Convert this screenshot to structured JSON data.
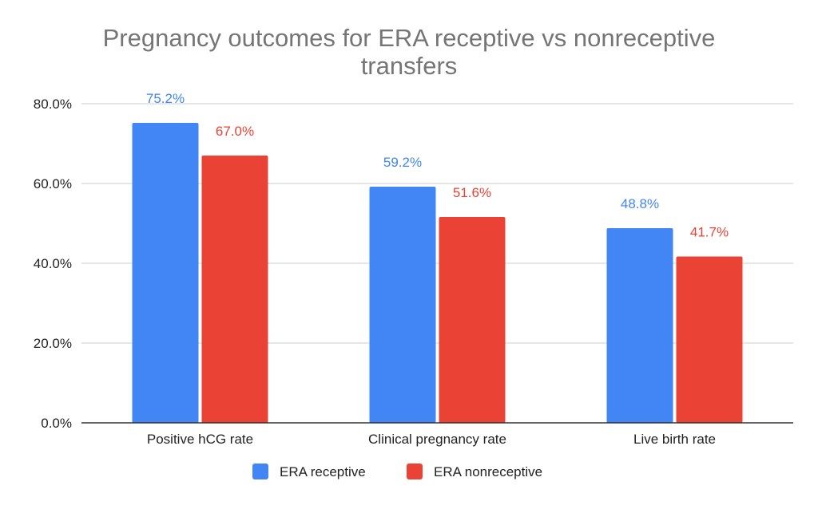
{
  "chart_data": {
    "type": "bar",
    "title_lines": [
      "Pregnancy outcomes for ERA receptive vs nonreceptive",
      "transfers"
    ],
    "categories": [
      "Positive hCG rate",
      "Clinical pregnancy rate",
      "Live birth rate"
    ],
    "series": [
      {
        "name": "ERA receptive",
        "color": "#4285f4",
        "values": [
          75.2,
          59.2,
          48.8
        ],
        "labels": [
          "75.2%",
          "59.2%",
          "48.8%"
        ]
      },
      {
        "name": "ERA nonreceptive",
        "color": "#ea4335",
        "values": [
          67.0,
          51.6,
          41.7
        ],
        "labels": [
          "67.0%",
          "51.6%",
          "41.7%"
        ]
      }
    ],
    "ylim": [
      0,
      80
    ],
    "yticks": [
      0,
      20,
      40,
      60,
      80
    ],
    "ytick_labels": [
      "0.0%",
      "20.0%",
      "40.0%",
      "60.0%",
      "80.0%"
    ],
    "grid": true,
    "legend_position": "bottom"
  }
}
